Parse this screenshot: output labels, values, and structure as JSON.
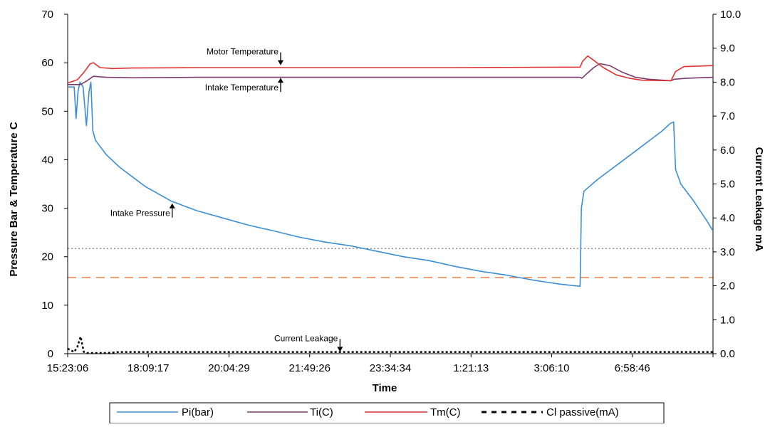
{
  "chart_data": {
    "type": "line",
    "title": "",
    "xlabel": "Time",
    "ylabel": "Pressure Bar & Temperature C",
    "y2label": "Current Leakage mA",
    "ylim": [
      0,
      70
    ],
    "y2lim": [
      0.0,
      10.0
    ],
    "yticks": [
      "0",
      "10",
      "20",
      "30",
      "40",
      "50",
      "60",
      "70"
    ],
    "y2ticks": [
      "0.0",
      "1.0",
      "2.0",
      "3.0",
      "4.0",
      "5.0",
      "6.0",
      "7.0",
      "8.0",
      "9.0",
      "10.0"
    ],
    "xticks": [
      "15:23:06",
      "18:09:17",
      "20:04:29",
      "21:49:26",
      "23:34:34",
      "1:21:13",
      "3:06:10",
      "6:58:46"
    ],
    "x_range": [
      0,
      100
    ],
    "grid": false,
    "legend_position": "bottom",
    "series": [
      {
        "name": "Pi(bar)",
        "color": "#3a8fd4",
        "axis": "left",
        "points": [
          [
            0,
            55
          ],
          [
            1,
            55
          ],
          [
            1.3,
            48.5
          ],
          [
            1.6,
            54
          ],
          [
            1.9,
            56
          ],
          [
            2.4,
            55
          ],
          [
            2.9,
            47
          ],
          [
            3.3,
            54
          ],
          [
            3.6,
            56
          ],
          [
            3.9,
            46
          ],
          [
            4.3,
            44
          ],
          [
            6,
            41
          ],
          [
            8,
            38.5
          ],
          [
            10,
            36.5
          ],
          [
            12,
            34.5
          ],
          [
            14,
            33
          ],
          [
            16,
            31.5
          ],
          [
            18,
            30.5
          ],
          [
            20,
            29.5
          ],
          [
            24,
            28
          ],
          [
            28,
            26.5
          ],
          [
            32,
            25.3
          ],
          [
            36,
            24
          ],
          [
            40,
            23
          ],
          [
            44,
            22.2
          ],
          [
            48,
            21.1
          ],
          [
            52,
            20
          ],
          [
            56,
            19.2
          ],
          [
            60,
            18
          ],
          [
            64,
            17
          ],
          [
            68,
            16.2
          ],
          [
            72,
            15.2
          ],
          [
            76,
            14.4
          ],
          [
            78,
            14.1
          ],
          [
            79.4,
            13.9
          ],
          [
            79.6,
            30
          ],
          [
            80,
            33.5
          ],
          [
            82,
            35.8
          ],
          [
            84,
            37.8
          ],
          [
            86,
            39.8
          ],
          [
            88,
            41.8
          ],
          [
            90,
            43.8
          ],
          [
            92,
            45.8
          ],
          [
            93.4,
            47.5
          ],
          [
            93.9,
            47.8
          ],
          [
            94.2,
            38
          ],
          [
            95,
            35
          ],
          [
            97,
            31.5
          ],
          [
            99,
            27.5
          ],
          [
            100,
            25.3
          ]
        ]
      },
      {
        "name": "Ti(C)",
        "color": "#7a3a6e",
        "axis": "left",
        "points": [
          [
            0,
            55.5
          ],
          [
            2,
            55.5
          ],
          [
            3,
            56.3
          ],
          [
            4,
            57.2
          ],
          [
            6,
            57
          ],
          [
            10,
            56.9
          ],
          [
            20,
            57
          ],
          [
            40,
            57
          ],
          [
            60,
            57
          ],
          [
            79.4,
            57
          ],
          [
            79.7,
            56.8
          ],
          [
            80.5,
            57.8
          ],
          [
            81.5,
            59
          ],
          [
            82.5,
            59.8
          ],
          [
            84,
            59.4
          ],
          [
            86,
            58
          ],
          [
            88,
            57
          ],
          [
            90,
            56.6
          ],
          [
            93.5,
            56.3
          ],
          [
            94,
            56.6
          ],
          [
            96,
            56.8
          ],
          [
            100,
            57
          ]
        ]
      },
      {
        "name": "Tm(C)",
        "color": "#e03030",
        "axis": "left",
        "points": [
          [
            0,
            55.8
          ],
          [
            1.5,
            56.5
          ],
          [
            2.5,
            58
          ],
          [
            3.5,
            59.8
          ],
          [
            4,
            60
          ],
          [
            5,
            59
          ],
          [
            7,
            58.8
          ],
          [
            10,
            58.9
          ],
          [
            20,
            59
          ],
          [
            40,
            59
          ],
          [
            60,
            59
          ],
          [
            79.4,
            59.1
          ],
          [
            79.8,
            60.3
          ],
          [
            80.6,
            61.4
          ],
          [
            81.5,
            60.5
          ],
          [
            83,
            59
          ],
          [
            85,
            57.5
          ],
          [
            87,
            56.8
          ],
          [
            89,
            56.4
          ],
          [
            93.5,
            56.3
          ],
          [
            94.2,
            58.2
          ],
          [
            95.5,
            59.2
          ],
          [
            100,
            59.4
          ]
        ]
      },
      {
        "name": "Cl passive(mA)",
        "color": "#000000",
        "axis": "right",
        "dashed": true,
        "points": [
          [
            0,
            0.15
          ],
          [
            0.5,
            0.1
          ],
          [
            1,
            0.05
          ],
          [
            1.5,
            0.2
          ],
          [
            2,
            0.5
          ],
          [
            2.5,
            0.05
          ],
          [
            3,
            0.02
          ],
          [
            6,
            0.02
          ],
          [
            8,
            0.05
          ],
          [
            100,
            0.05
          ]
        ]
      }
    ],
    "reference_lines": [
      {
        "axis": "left",
        "value": 21.7,
        "color": "#555555",
        "style": "dotted"
      },
      {
        "axis": "left",
        "value": 15.7,
        "color": "#f0a070",
        "style": "dashed"
      }
    ],
    "annotations": [
      {
        "text": "Motor Temperature",
        "x": 33,
        "y": 59.2,
        "arrow": "down"
      },
      {
        "text": "Intake Temperature",
        "x": 33,
        "y": 57.2,
        "arrow": "up"
      },
      {
        "text": "Intake Pressure",
        "x": 16.2,
        "y": 31.3,
        "arrow": "up"
      },
      {
        "text": "Current Leakage",
        "x": 42.2,
        "y": 0.1,
        "arrow": "down"
      }
    ]
  }
}
